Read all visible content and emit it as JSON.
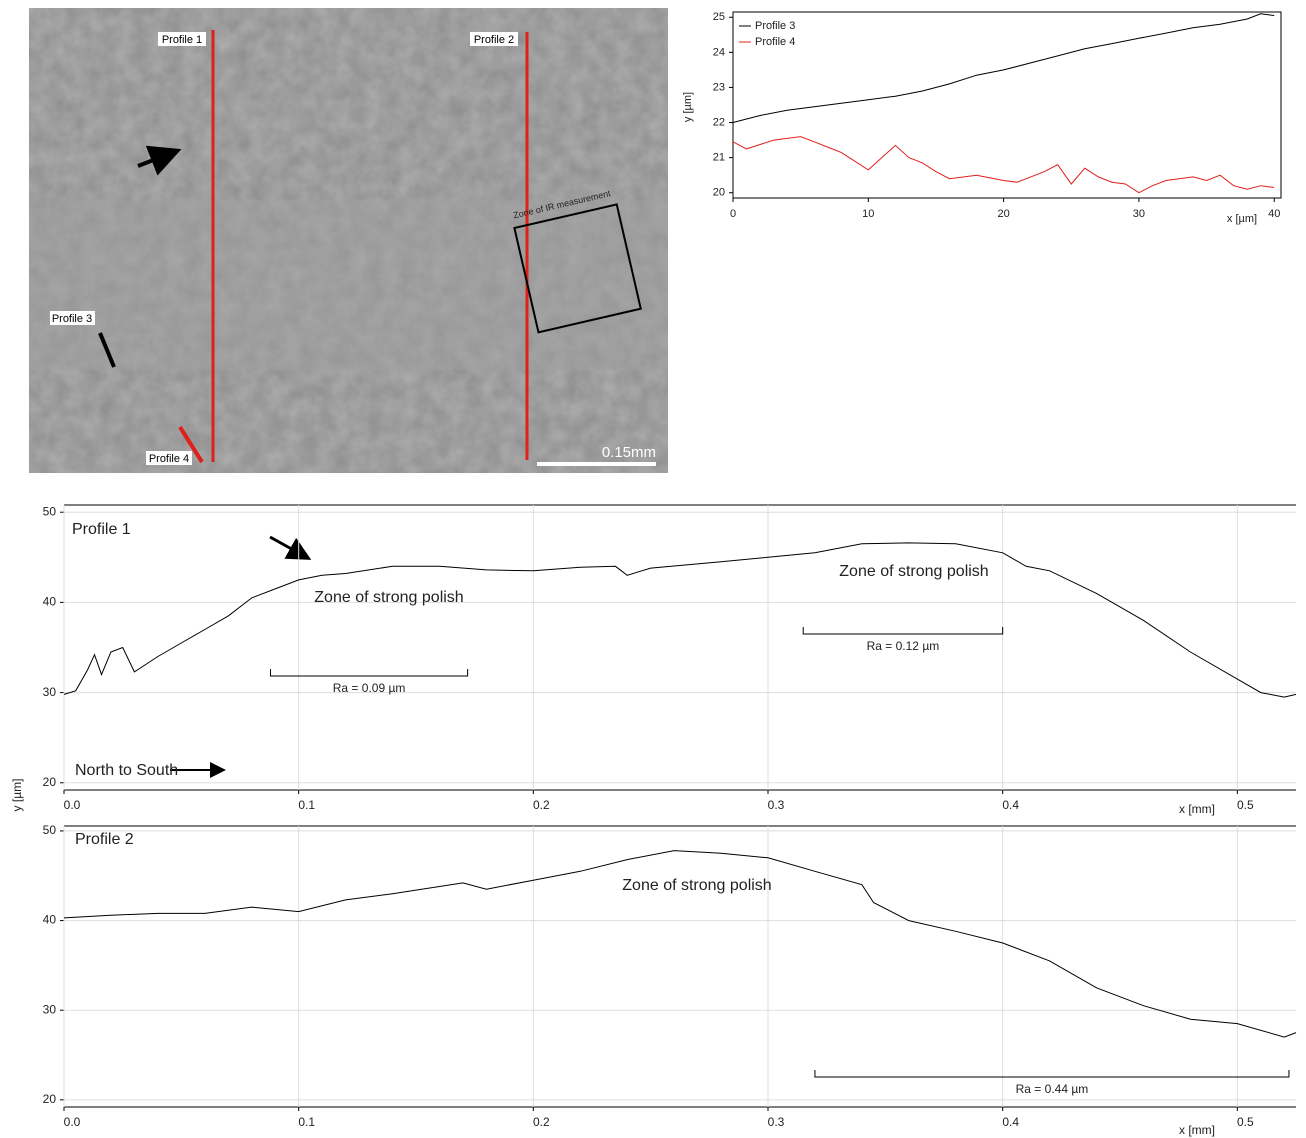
{
  "image": {
    "profile_labels": [
      "Profile 1",
      "Profile 2",
      "Profile 3",
      "Profile 4"
    ],
    "zone_label": "Zone of IR measurement",
    "scale_bar": "0.15mm"
  },
  "chart_data": [
    {
      "type": "line",
      "ylabel": "y [µm]",
      "xlabel": "x [µm]",
      "xlim": [
        0,
        40.5
      ],
      "ylim": [
        19.85,
        25.15
      ],
      "xticks": [
        0,
        10,
        20,
        30,
        40
      ],
      "yticks": [
        20,
        21,
        22,
        23,
        24,
        25
      ],
      "grid": false,
      "legend": "top-left",
      "series": [
        {
          "name": "Profile 3",
          "color": "#000000",
          "x": [
            0,
            2,
            4,
            6,
            8,
            10,
            12,
            14,
            16,
            18,
            20,
            22,
            24,
            26,
            28,
            30,
            32,
            34,
            36,
            38,
            39,
            40
          ],
          "values": [
            22.0,
            22.2,
            22.35,
            22.45,
            22.55,
            22.65,
            22.75,
            22.9,
            23.1,
            23.35,
            23.5,
            23.7,
            23.9,
            24.1,
            24.25,
            24.4,
            24.55,
            24.7,
            24.8,
            24.95,
            25.1,
            25.05
          ]
        },
        {
          "name": "Profile 4",
          "color": "#e0201b",
          "x": [
            0,
            1,
            3,
            5,
            6,
            7,
            8,
            9,
            10,
            11,
            12,
            13,
            14,
            15,
            16,
            18,
            20,
            21,
            23,
            24,
            25,
            26,
            27,
            28,
            29,
            30,
            31,
            32,
            34,
            35,
            36,
            37,
            38,
            39,
            40
          ],
          "values": [
            21.45,
            21.25,
            21.5,
            21.6,
            21.45,
            21.3,
            21.15,
            20.9,
            20.65,
            21.0,
            21.35,
            21.0,
            20.85,
            20.6,
            20.4,
            20.5,
            20.35,
            20.3,
            20.6,
            20.8,
            20.25,
            20.7,
            20.45,
            20.3,
            20.25,
            20.0,
            20.2,
            20.35,
            20.45,
            20.35,
            20.5,
            20.2,
            20.1,
            20.2,
            20.15
          ]
        }
      ]
    },
    {
      "type": "line",
      "title": "Profile 1",
      "ylabel": "y [µm]",
      "xlabel": "x [mm]",
      "xlim": [
        0,
        0.525
      ],
      "ylim": [
        19.2,
        50.8
      ],
      "xticks": [
        {
          "value": 0,
          "label": "0.0"
        },
        0.1,
        0.2,
        0.3,
        0.4,
        0.5
      ],
      "yticks": [
        20,
        30,
        40,
        50
      ],
      "grid": true,
      "annotations": [
        "Zone of strong polish",
        "Zone of strong polish",
        "North to South"
      ],
      "ra_ranges": [
        {
          "label": "Ra = 0.09 µm",
          "x": [
            0.088,
            0.172
          ]
        },
        {
          "label": "Ra = 0.12 µm",
          "x": [
            0.315,
            0.4
          ]
        }
      ],
      "series": [
        {
          "name": "Profile 1",
          "color": "#000000",
          "x": [
            0,
            0.005,
            0.01,
            0.013,
            0.016,
            0.02,
            0.025,
            0.03,
            0.04,
            0.05,
            0.06,
            0.07,
            0.08,
            0.09,
            0.1,
            0.11,
            0.12,
            0.14,
            0.16,
            0.18,
            0.2,
            0.22,
            0.235,
            0.24,
            0.25,
            0.28,
            0.3,
            0.32,
            0.34,
            0.36,
            0.38,
            0.4,
            0.41,
            0.42,
            0.44,
            0.46,
            0.48,
            0.5,
            0.51,
            0.52,
            0.525
          ],
          "values": [
            29.8,
            30.2,
            32.5,
            34.2,
            32.0,
            34.5,
            35.0,
            32.3,
            34.0,
            35.5,
            37.0,
            38.5,
            40.5,
            41.5,
            42.5,
            43.0,
            43.2,
            44.0,
            44.0,
            43.6,
            43.5,
            43.9,
            44.0,
            43.0,
            43.8,
            44.5,
            45.0,
            45.5,
            46.5,
            46.6,
            46.5,
            45.5,
            44.0,
            43.5,
            41.0,
            38.0,
            34.5,
            31.5,
            30.0,
            29.5,
            29.8
          ]
        }
      ]
    },
    {
      "type": "line",
      "title": "Profile 2",
      "xlabel": "x [mm]",
      "xlim": [
        0,
        0.525
      ],
      "ylim": [
        19.2,
        50.55
      ],
      "xticks": [
        {
          "value": 0,
          "label": "0.0"
        },
        0.1,
        0.2,
        0.3,
        0.4,
        0.5
      ],
      "yticks": [
        20,
        30,
        40,
        50
      ],
      "grid": true,
      "annotations": [
        "Zone of strong polish"
      ],
      "ra_ranges": [
        {
          "label": "Ra = 0.44 µm",
          "x": [
            0.32,
            0.522
          ]
        }
      ],
      "series": [
        {
          "name": "Profile 2",
          "color": "#000000",
          "x": [
            0,
            0.02,
            0.04,
            0.06,
            0.08,
            0.1,
            0.12,
            0.14,
            0.16,
            0.17,
            0.18,
            0.2,
            0.22,
            0.24,
            0.26,
            0.28,
            0.3,
            0.32,
            0.34,
            0.345,
            0.36,
            0.38,
            0.4,
            0.42,
            0.44,
            0.46,
            0.48,
            0.5,
            0.52,
            0.525
          ],
          "values": [
            40.3,
            40.6,
            40.8,
            40.8,
            41.5,
            41.0,
            42.3,
            43.0,
            43.8,
            44.2,
            43.5,
            44.5,
            45.5,
            46.8,
            47.8,
            47.5,
            47.0,
            45.5,
            44.0,
            42.0,
            40.0,
            38.8,
            37.5,
            35.5,
            32.5,
            30.5,
            29.0,
            28.5,
            27.0,
            27.5
          ]
        }
      ]
    }
  ]
}
